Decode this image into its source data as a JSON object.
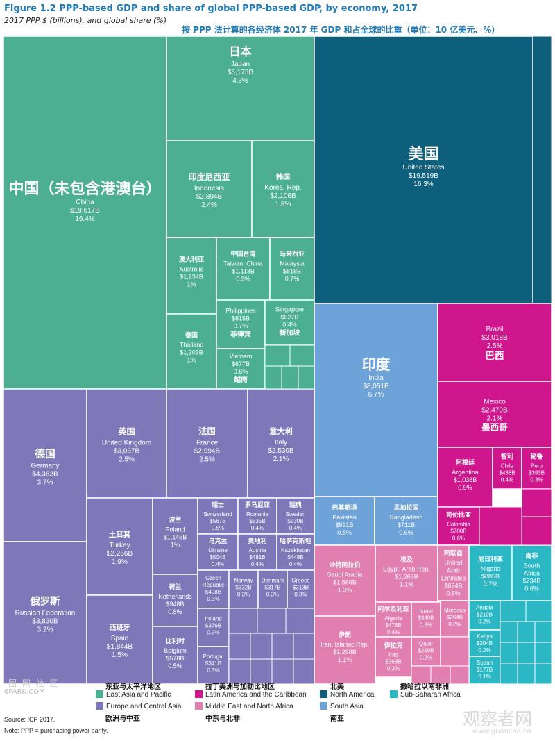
{
  "header": {
    "title": "Figure 1.2  PPP-based GDP and share of global PPP-based GDP, by economy, 2017",
    "subtitle": "2017 PPP $ (billions), and global share (%)",
    "title_cn": "按 PPP 法计算的各经济体 2017 年 GDP 和占全球的比重（单位：10 亿美元、%）"
  },
  "chart_data": {
    "type": "treemap",
    "colors": {
      "East Asia and Pacific": "#4caf92",
      "Europe and Central Asia": "#7e78b8",
      "Latin America and the Caribbean": "#d0168c",
      "North America": "#0e5f7c",
      "Middle East and North Africa": "#e07fb0",
      "South Asia": "#6ea3d9",
      "Sub-Saharan Africa": "#2cb7c5"
    },
    "items": [
      {
        "cn": "中国（未包含港澳台）",
        "en": "China",
        "value": "$19,617B",
        "share": "16.4%",
        "region": "East Asia and Pacific"
      },
      {
        "cn": "日本",
        "en": "Japan",
        "value": "$5,173B",
        "share": "4.3%",
        "region": "East Asia and Pacific"
      },
      {
        "cn": "印度尼西亚",
        "en": "Indonesia",
        "value": "$2,894B",
        "share": "2.4%",
        "region": "East Asia and Pacific"
      },
      {
        "cn": "韩国",
        "en": "Korea, Rep.",
        "value": "$2,106B",
        "share": "1.8%",
        "region": "East Asia and Pacific"
      },
      {
        "cn": "澳大利亚",
        "en": "Australia",
        "value": "$1,234B",
        "share": "1%",
        "region": "East Asia and Pacific"
      },
      {
        "cn": "中国台湾",
        "en": "Taiwan, China",
        "value": "$1,113B",
        "share": "0.9%",
        "region": "East Asia and Pacific"
      },
      {
        "cn": "马来西亚",
        "en": "Malaysia",
        "value": "$818B",
        "share": "0.7%",
        "region": "East Asia and Pacific"
      },
      {
        "cn": "泰国",
        "en": "Thailand",
        "value": "$1,203B",
        "share": "1%",
        "region": "East Asia and Pacific"
      },
      {
        "cn": "菲律宾",
        "en": "Philippines",
        "value": "$815B",
        "share": "0.7%",
        "region": "East Asia and Pacific"
      },
      {
        "cn": "新加坡",
        "en": "Singapore",
        "value": "$527B",
        "share": "0.4%",
        "region": "East Asia and Pacific"
      },
      {
        "cn": "越南",
        "en": "Vietnam",
        "value": "$677B",
        "share": "0.6%",
        "region": "East Asia and Pacific"
      },
      {
        "cn": "美国",
        "en": "United States",
        "value": "$19,519B",
        "share": "16.3%",
        "region": "North America"
      },
      {
        "cn": "印度",
        "en": "India",
        "value": "$8,051B",
        "share": "6.7%",
        "region": "South Asia"
      },
      {
        "cn": "巴基斯坦",
        "en": "Pakistan",
        "value": "$991B",
        "share": "0.8%",
        "region": "South Asia"
      },
      {
        "cn": "孟加拉国",
        "en": "Bangladesh",
        "value": "$711B",
        "share": "0.6%",
        "region": "South Asia"
      },
      {
        "cn": "巴西",
        "en": "Brazil",
        "value": "$3,018B",
        "share": "2.5%",
        "region": "Latin America and the Caribbean"
      },
      {
        "cn": "墨西哥",
        "en": "Mexico",
        "value": "$2,470B",
        "share": "2.1%",
        "region": "Latin America and the Caribbean"
      },
      {
        "cn": "阿根廷",
        "en": "Argentina",
        "value": "$1,038B",
        "share": "0.9%",
        "region": "Latin America and the Caribbean"
      },
      {
        "cn": "智利",
        "en": "Chile",
        "value": "$438B",
        "share": "0.4%",
        "region": "Latin America and the Caribbean"
      },
      {
        "cn": "秘鲁",
        "en": "Peru",
        "value": "$393B",
        "share": "0.3%",
        "region": "Latin America and the Caribbean"
      },
      {
        "cn": "哥伦比亚",
        "en": "Colombia",
        "value": "$700B",
        "share": "0.6%",
        "region": "Latin America and the Caribbean"
      },
      {
        "cn": "德国",
        "en": "Germany",
        "value": "$4,382B",
        "share": "3.7%",
        "region": "Europe and Central Asia"
      },
      {
        "cn": "俄罗斯",
        "en": "Russian Federation",
        "value": "$3,830B",
        "share": "3.2%",
        "region": "Europe and Central Asia"
      },
      {
        "cn": "英国",
        "en": "United Kingdom",
        "value": "$3,037B",
        "share": "2.5%",
        "region": "Europe and Central Asia"
      },
      {
        "cn": "法国",
        "en": "France",
        "value": "$2,994B",
        "share": "2.5%",
        "region": "Europe and Central Asia"
      },
      {
        "cn": "意大利",
        "en": "Italy",
        "value": "$2,530B",
        "share": "2.1%",
        "region": "Europe and Central Asia"
      },
      {
        "cn": "土耳其",
        "en": "Turkey",
        "value": "$2,266B",
        "share": "1.9%",
        "region": "Europe and Central Asia"
      },
      {
        "cn": "西班牙",
        "en": "Spain",
        "value": "$1,844B",
        "share": "1.5%",
        "region": "Europe and Central Asia"
      },
      {
        "cn": "波兰",
        "en": "Poland",
        "value": "$1,145B",
        "share": "1%",
        "region": "Europe and Central Asia"
      },
      {
        "cn": "荷兰",
        "en": "Netherlands",
        "value": "$948B",
        "share": "0.8%",
        "region": "Europe and Central Asia"
      },
      {
        "cn": "比利时",
        "en": "Belgium",
        "value": "$578B",
        "share": "0.5%",
        "region": "Europe and Central Asia"
      },
      {
        "cn": "瑞士",
        "en": "Switzerland",
        "value": "$567B",
        "share": "0.5%",
        "region": "Europe and Central Asia"
      },
      {
        "cn": "罗马尼亚",
        "en": "Romania",
        "value": "$535B",
        "share": "0.4%",
        "region": "Europe and Central Asia"
      },
      {
        "cn": "瑞典",
        "en": "Sweden",
        "value": "$530B",
        "share": "0.4%",
        "region": "Europe and Central Asia"
      },
      {
        "cn": "乌克兰",
        "en": "Ukraine",
        "value": "$504B",
        "share": "0.4%",
        "region": "Europe and Central Asia"
      },
      {
        "cn": "奥地利",
        "en": "Austria",
        "value": "$481B",
        "share": "0.4%",
        "region": "Europe and Central Asia"
      },
      {
        "cn": "哈萨克斯坦",
        "en": "Kazakhstan",
        "value": "$448B",
        "share": "0.4%",
        "region": "Europe and Central Asia"
      },
      {
        "cn": "",
        "en": "Czech Republic",
        "value": "$408B",
        "share": "0.3%",
        "region": "Europe and Central Asia"
      },
      {
        "cn": "",
        "en": "Norway",
        "value": "$332B",
        "share": "0.3%",
        "region": "Europe and Central Asia"
      },
      {
        "cn": "",
        "en": "Denmark",
        "value": "$317B",
        "share": "0.3%",
        "region": "Europe and Central Asia"
      },
      {
        "cn": "",
        "en": "Greece",
        "value": "$313B",
        "share": "0.3%",
        "region": "Europe and Central Asia"
      },
      {
        "cn": "",
        "en": "Ireland",
        "value": "$376B",
        "share": "0.3%",
        "region": "Europe and Central Asia"
      },
      {
        "cn": "",
        "en": "Portugal",
        "value": "$341B",
        "share": "0.3%",
        "region": "Europe and Central Asia"
      },
      {
        "cn": "沙特阿拉伯",
        "en": "Saudi Arabia",
        "value": "$1,566B",
        "share": "1.3%",
        "region": "Middle East and North Africa"
      },
      {
        "cn": "埃及",
        "en": "Egypt, Arab Rep.",
        "value": "$1,263B",
        "share": "1.1%",
        "region": "Middle East and North Africa"
      },
      {
        "cn": "阿联酋",
        "en": "United Arab Emirates",
        "value": "$624B",
        "share": "0.5%",
        "region": "Middle East and North Africa"
      },
      {
        "cn": "伊朗",
        "en": "Iran, Islamic Rep.",
        "value": "$1,298B",
        "share": "1.1%",
        "region": "Middle East and North Africa"
      },
      {
        "cn": "阿尔及利亚",
        "en": "Algeria",
        "value": "$478B",
        "share": "0.4%",
        "region": "Middle East and North Africa"
      },
      {
        "cn": "",
        "en": "Israel",
        "value": "$340B",
        "share": "0.3%",
        "region": "Middle East and North Africa"
      },
      {
        "cn": "",
        "en": "Morocco",
        "value": "$264B",
        "share": "0.2%",
        "region": "Middle East and North Africa"
      },
      {
        "cn": "",
        "en": "Qatar",
        "value": "$259B",
        "share": "0.2%",
        "region": "Middle East and North Africa"
      },
      {
        "cn": "伊拉克",
        "en": "Iraq",
        "value": "$368B",
        "share": "0.3%",
        "region": "Middle East and North Africa"
      },
      {
        "cn": "尼日利亚",
        "en": "Nigeria",
        "value": "$885B",
        "share": "0.7%",
        "region": "Sub-Saharan Africa"
      },
      {
        "cn": "南非",
        "en": "South Africa",
        "value": "$734B",
        "share": "0.6%",
        "region": "Sub-Saharan Africa"
      },
      {
        "cn": "",
        "en": "Angola",
        "value": "$219B",
        "share": "0.2%",
        "region": "Sub-Saharan Africa"
      },
      {
        "cn": "",
        "en": "Kenya",
        "value": "$204B",
        "share": "0.2%",
        "region": "Sub-Saharan Africa"
      },
      {
        "cn": "",
        "en": "Sudan",
        "value": "$177B",
        "share": "0.1%",
        "region": "Sub-Saharan Africa"
      }
    ]
  },
  "legend": {
    "entries": [
      {
        "cn": "东亚与太平洋地区",
        "en": "East Asia and Pacific",
        "color": "#4caf92"
      },
      {
        "cn": "欧洲与中亚",
        "en": "Europe and Central Asia",
        "color": "#7e78b8"
      },
      {
        "cn": "拉丁美洲与加勒比地区",
        "en": "Latin America and the Caribbean",
        "color": "#d0168c"
      },
      {
        "cn": "中东与北非",
        "en": "Middle East and North Africa",
        "color": "#e07fb0"
      },
      {
        "cn": "北美",
        "en": "North America",
        "color": "#0e5f7c"
      },
      {
        "cn": "南亚",
        "en": "South Asia",
        "color": "#6ea3d9"
      },
      {
        "cn": "撒哈拉以南非洲",
        "en": "Sub-Saharan Africa",
        "color": "#2cb7c5"
      }
    ]
  },
  "footer": {
    "source": "Source: ICP 2017.",
    "note": "Note: PPP = purchasing power parity."
  },
  "watermarks": {
    "left_top": "图 网 社 区",
    "left_bottom": "6PARK.COM",
    "right_top": "观察者网",
    "right_bottom": "www.guancha.cn"
  }
}
